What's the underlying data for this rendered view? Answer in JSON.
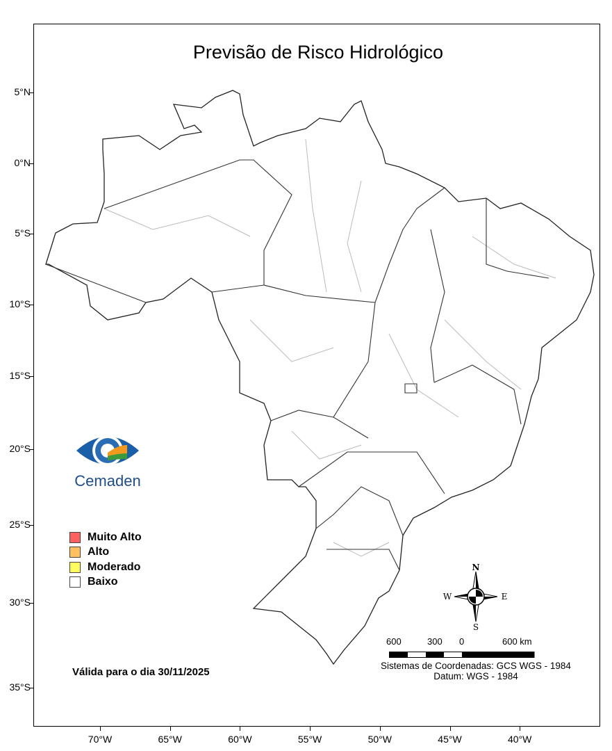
{
  "title": "Previsão de Risco Hidrológico",
  "lat_ticks": [
    "5°N",
    "0°N",
    "5°S",
    "10°S",
    "15°S",
    "20°S",
    "25°S",
    "30°S",
    "35°S"
  ],
  "lon_ticks": [
    "70°W",
    "65°W",
    "60°W",
    "55°W",
    "50°W",
    "45°W",
    "40°W"
  ],
  "logo": {
    "text": "Cemaden"
  },
  "legend": [
    {
      "label": "Muito Alto",
      "color": "#ff6060"
    },
    {
      "label": "Alto",
      "color": "#ffc060"
    },
    {
      "label": "Moderado",
      "color": "#ffff60"
    },
    {
      "label": "Baixo",
      "color": "#ffffff"
    }
  ],
  "valid_date": "Válida para o dia 30/11/2025",
  "compass": {
    "n": "N",
    "s": "S",
    "e": "E",
    "w": "W"
  },
  "scale": {
    "labels": [
      "600",
      "300",
      "0",
      "600 km"
    ]
  },
  "coords": {
    "system": "Sistemas de Coordenadas: GCS WGS - 1984",
    "datum": "Datum: WGS - 1984"
  }
}
